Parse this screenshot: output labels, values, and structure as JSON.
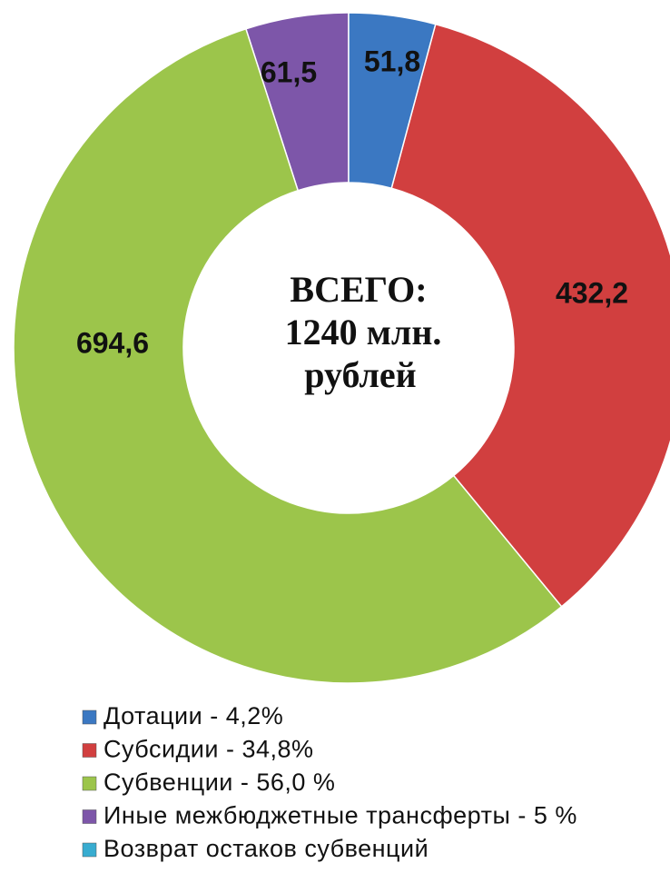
{
  "chart_data": {
    "type": "donut",
    "annotations": [
      "ВСЕГО:",
      "1240 млн.",
      "рублей"
    ],
    "categories": [
      "Дотации - 4,2%",
      "Субсидии - 34,8%",
      "Субвенции - 56,0 %",
      "Иные межбюджетные трансферты - 5 %",
      "Возврат остаков субвенций"
    ],
    "values": [
      51.8,
      432.2,
      694.6,
      61.5,
      null
    ],
    "value_labels": [
      "51,8",
      "432,2",
      "694,6",
      "61,5",
      null
    ],
    "colors": [
      "#3b78c2",
      "#d13f3f",
      "#9cc54b",
      "#7d56a9",
      "#38acd0"
    ]
  }
}
